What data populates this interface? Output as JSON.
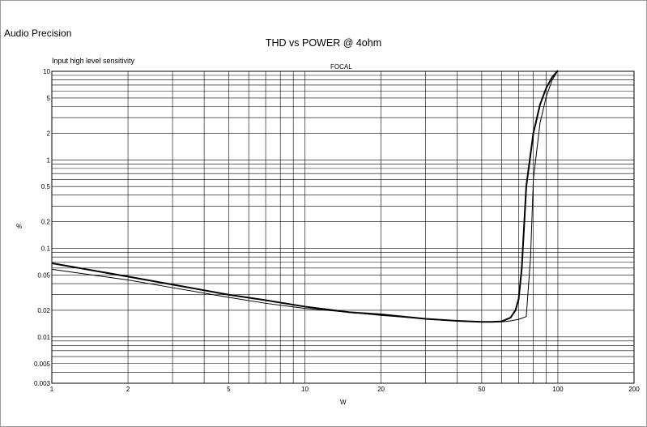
{
  "header": {
    "brand": "Audio Precision"
  },
  "chart_data": {
    "type": "line",
    "title": "THD vs POWER @ 4ohm",
    "subtitle": "Input high level sensitivity",
    "annotation": "FOCAL",
    "xlabel": "W",
    "ylabel": "%",
    "xscale": "log",
    "yscale": "log",
    "xlim": [
      1,
      200
    ],
    "ylim": [
      0.003,
      10
    ],
    "grid": true,
    "x_ticks": [
      1,
      2,
      5,
      10,
      20,
      50,
      100,
      200
    ],
    "x_tick_labels": [
      "1",
      "2",
      "5",
      "10",
      "20",
      "50",
      "100",
      "200"
    ],
    "y_ticks": [
      0.003,
      0.005,
      0.01,
      0.02,
      0.05,
      0.1,
      0.2,
      0.5,
      1,
      2,
      5,
      10
    ],
    "y_tick_labels": [
      "0.003",
      "0.005",
      "0.01",
      "0.02",
      "0.05",
      "0.1",
      "0.2",
      "0.5",
      "1",
      "2",
      "5",
      "10"
    ],
    "x_grid": [
      1,
      2,
      3,
      4,
      5,
      6,
      7,
      8,
      9,
      10,
      20,
      30,
      40,
      50,
      60,
      70,
      80,
      90,
      100,
      200
    ],
    "y_grid": [
      0.003,
      0.004,
      0.005,
      0.006,
      0.007,
      0.008,
      0.009,
      0.01,
      0.02,
      0.03,
      0.04,
      0.05,
      0.06,
      0.07,
      0.08,
      0.09,
      0.1,
      0.2,
      0.3,
      0.4,
      0.5,
      0.6,
      0.7,
      0.8,
      0.9,
      1,
      2,
      3,
      4,
      5,
      6,
      7,
      8,
      9,
      10
    ],
    "series": [
      {
        "color": "#000000",
        "width": 2,
        "x": [
          1,
          2,
          3,
          5,
          7,
          10,
          15,
          20,
          30,
          40,
          50,
          55,
          60,
          65,
          68,
          70,
          72,
          75,
          80,
          85,
          90,
          95,
          100
        ],
        "y": [
          0.068,
          0.048,
          0.039,
          0.03,
          0.026,
          0.022,
          0.019,
          0.018,
          0.016,
          0.0152,
          0.0148,
          0.0148,
          0.015,
          0.0165,
          0.02,
          0.027,
          0.06,
          0.5,
          2.0,
          4.2,
          6.5,
          8.6,
          10.5
        ]
      },
      {
        "color": "#000000",
        "width": 1,
        "x": [
          1,
          2,
          3,
          5,
          7,
          10,
          15,
          20,
          30,
          40,
          50,
          60,
          65,
          70,
          75,
          78,
          80,
          85,
          90,
          95,
          100
        ],
        "y": [
          0.058,
          0.044,
          0.036,
          0.028,
          0.024,
          0.021,
          0.019,
          0.0175,
          0.016,
          0.0152,
          0.0148,
          0.0148,
          0.0152,
          0.0158,
          0.017,
          0.08,
          0.6,
          2.6,
          5.2,
          8.0,
          10.5
        ]
      }
    ]
  }
}
